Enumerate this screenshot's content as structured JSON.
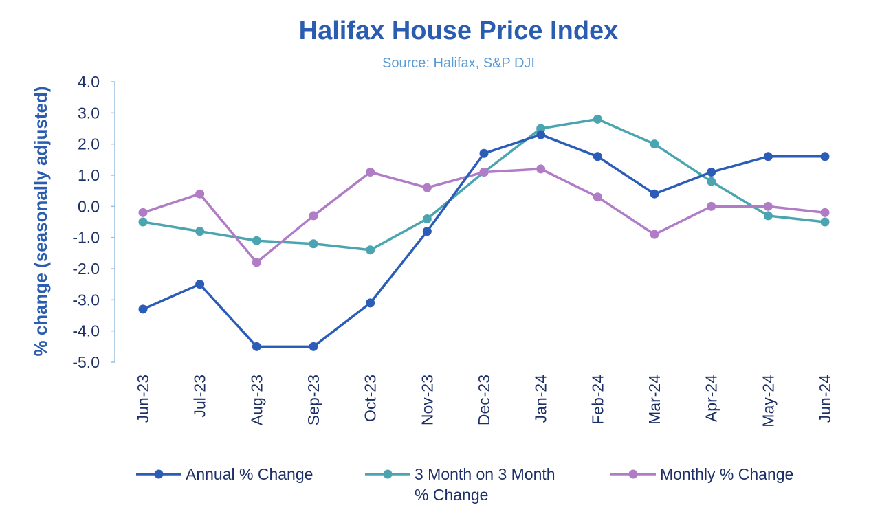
{
  "chart_data": {
    "type": "line",
    "title": "Halifax House Price Index",
    "subtitle": "Source: Halifax, S&P DJI",
    "xlabel": "",
    "ylabel": "% change (seasonally adjusted)",
    "ylim": [
      -5.0,
      4.0
    ],
    "yticks": [
      "4.0",
      "3.0",
      "2.0",
      "1.0",
      "0.0",
      "-1.0",
      "-2.0",
      "-3.0",
      "-4.0",
      "-5.0"
    ],
    "ytick_values": [
      4,
      3,
      2,
      1,
      0,
      -1,
      -2,
      -3,
      -4,
      -5
    ],
    "categories": [
      "Jun-23",
      "Jul-23",
      "Aug-23",
      "Sep-23",
      "Oct-23",
      "Nov-23",
      "Dec-23",
      "Jan-24",
      "Feb-24",
      "Mar-24",
      "Apr-24",
      "May-24",
      "Jun-24"
    ],
    "grid": false,
    "legend": "bottom",
    "series": [
      {
        "name": "Annual % Change",
        "legend_lines": [
          "Annual % Change"
        ],
        "color": "#2a5cb8",
        "values": [
          -3.3,
          -2.5,
          -4.5,
          -4.5,
          -3.1,
          -0.8,
          1.7,
          2.3,
          1.6,
          0.4,
          1.1,
          1.6,
          1.6
        ]
      },
      {
        "name": "3 Month on 3 Month % Change",
        "legend_lines": [
          "3 Month on 3 Month",
          "% Change"
        ],
        "color": "#4aa5b0",
        "values": [
          -0.5,
          -0.8,
          -1.1,
          -1.2,
          -1.4,
          -0.4,
          1.1,
          2.5,
          2.8,
          2.0,
          0.8,
          -0.3,
          -0.5
        ]
      },
      {
        "name": "Monthly % Change",
        "legend_lines": [
          "Monthly % Change"
        ],
        "color": "#b07cc6",
        "values": [
          -0.2,
          0.4,
          -1.8,
          -0.3,
          1.1,
          0.6,
          1.1,
          1.2,
          0.3,
          -0.9,
          0.0,
          0.0,
          -0.2
        ]
      }
    ]
  }
}
